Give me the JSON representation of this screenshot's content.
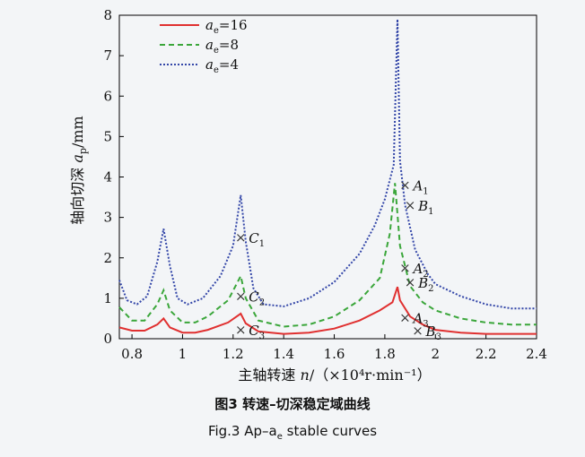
{
  "chart_data": {
    "type": "line",
    "xlabel_main": "主轴转速 ",
    "xlabel_var": "n",
    "xlabel_unit": "/（×10⁴r·min⁻¹）",
    "ylabel_main": "轴向切深 ",
    "ylabel_var": "a",
    "ylabel_sub": "p",
    "ylabel_unit": "/mm",
    "xlim": [
      0.75,
      2.4
    ],
    "ylim": [
      0,
      8
    ],
    "xticks": [
      0.8,
      1.0,
      1.2,
      1.4,
      1.6,
      1.8,
      2.0,
      2.2,
      2.4
    ],
    "xtick_labels": [
      "0.8",
      "1",
      "1.2",
      "1.4",
      "1.6",
      "1.8",
      "2",
      "2.2",
      "2.4"
    ],
    "yticks": [
      0,
      1,
      2,
      3,
      4,
      5,
      6,
      7,
      8
    ],
    "ytick_labels": [
      "0",
      "1",
      "2",
      "3",
      "4",
      "5",
      "6",
      "7",
      "8"
    ],
    "legend_position": "top-left",
    "series": [
      {
        "name": "=16",
        "name_var": "a",
        "name_sub": "e",
        "color": "#e03030",
        "style": "solid",
        "points": [
          [
            0.75,
            0.28
          ],
          [
            0.8,
            0.2
          ],
          [
            0.85,
            0.2
          ],
          [
            0.9,
            0.35
          ],
          [
            0.925,
            0.5
          ],
          [
            0.95,
            0.28
          ],
          [
            1.0,
            0.15
          ],
          [
            1.05,
            0.15
          ],
          [
            1.1,
            0.22
          ],
          [
            1.18,
            0.4
          ],
          [
            1.23,
            0.62
          ],
          [
            1.25,
            0.38
          ],
          [
            1.3,
            0.18
          ],
          [
            1.4,
            0.12
          ],
          [
            1.5,
            0.15
          ],
          [
            1.6,
            0.25
          ],
          [
            1.7,
            0.45
          ],
          [
            1.78,
            0.7
          ],
          [
            1.83,
            0.9
          ],
          [
            1.85,
            1.28
          ],
          [
            1.86,
            0.95
          ],
          [
            1.9,
            0.55
          ],
          [
            1.95,
            0.35
          ],
          [
            2.0,
            0.22
          ],
          [
            2.1,
            0.15
          ],
          [
            2.2,
            0.12
          ],
          [
            2.3,
            0.12
          ],
          [
            2.4,
            0.12
          ]
        ]
      },
      {
        "name": "=8",
        "name_var": "a",
        "name_sub": "e",
        "color": "#3aa63a",
        "style": "dashed",
        "points": [
          [
            0.75,
            0.78
          ],
          [
            0.8,
            0.45
          ],
          [
            0.85,
            0.45
          ],
          [
            0.9,
            0.85
          ],
          [
            0.925,
            1.2
          ],
          [
            0.95,
            0.7
          ],
          [
            1.0,
            0.4
          ],
          [
            1.05,
            0.4
          ],
          [
            1.1,
            0.55
          ],
          [
            1.18,
            0.95
          ],
          [
            1.23,
            1.55
          ],
          [
            1.25,
            1.0
          ],
          [
            1.3,
            0.45
          ],
          [
            1.4,
            0.3
          ],
          [
            1.5,
            0.35
          ],
          [
            1.6,
            0.55
          ],
          [
            1.7,
            0.95
          ],
          [
            1.78,
            1.5
          ],
          [
            1.82,
            2.6
          ],
          [
            1.84,
            3.85
          ],
          [
            1.86,
            2.3
          ],
          [
            1.9,
            1.3
          ],
          [
            1.95,
            0.9
          ],
          [
            2.0,
            0.7
          ],
          [
            2.1,
            0.5
          ],
          [
            2.2,
            0.4
          ],
          [
            2.3,
            0.35
          ],
          [
            2.4,
            0.35
          ]
        ]
      },
      {
        "name": "=4",
        "name_var": "a",
        "name_sub": "e",
        "color": "#3346a8",
        "style": "dotted",
        "points": [
          [
            0.75,
            1.45
          ],
          [
            0.78,
            0.95
          ],
          [
            0.82,
            0.85
          ],
          [
            0.86,
            1.05
          ],
          [
            0.9,
            1.9
          ],
          [
            0.925,
            2.72
          ],
          [
            0.95,
            1.8
          ],
          [
            0.98,
            1.0
          ],
          [
            1.02,
            0.85
          ],
          [
            1.08,
            1.0
          ],
          [
            1.15,
            1.55
          ],
          [
            1.2,
            2.3
          ],
          [
            1.23,
            3.55
          ],
          [
            1.25,
            2.4
          ],
          [
            1.28,
            1.25
          ],
          [
            1.32,
            0.85
          ],
          [
            1.4,
            0.8
          ],
          [
            1.5,
            1.0
          ],
          [
            1.6,
            1.4
          ],
          [
            1.7,
            2.1
          ],
          [
            1.76,
            2.8
          ],
          [
            1.8,
            3.45
          ],
          [
            1.835,
            4.3
          ],
          [
            1.85,
            7.9
          ],
          [
            1.86,
            4.4
          ],
          [
            1.88,
            3.3
          ],
          [
            1.92,
            2.2
          ],
          [
            1.97,
            1.6
          ],
          [
            2.0,
            1.35
          ],
          [
            2.1,
            1.05
          ],
          [
            2.2,
            0.85
          ],
          [
            2.3,
            0.75
          ],
          [
            2.4,
            0.75
          ]
        ]
      }
    ],
    "markers": [
      {
        "label": "A",
        "sub": "1",
        "x": 1.88,
        "y": 3.8
      },
      {
        "label": "B",
        "sub": "1",
        "x": 1.9,
        "y": 3.3
      },
      {
        "label": "A",
        "sub": "2",
        "x": 1.88,
        "y": 1.75
      },
      {
        "label": "B",
        "sub": "2",
        "x": 1.9,
        "y": 1.4
      },
      {
        "label": "A",
        "sub": "3",
        "x": 1.88,
        "y": 0.52
      },
      {
        "label": "B",
        "sub": "3",
        "x": 1.93,
        "y": 0.2
      },
      {
        "label": "C",
        "sub": "1",
        "x": 1.23,
        "y": 2.5
      },
      {
        "label": "C",
        "sub": "2",
        "x": 1.23,
        "y": 1.05
      },
      {
        "label": "C",
        "sub": "3",
        "x": 1.23,
        "y": 0.22
      }
    ]
  },
  "caption": {
    "cn": "图3  转速–切深稳定域曲线",
    "en_prefix": "Fig.3     Ap–a",
    "en_sub": "e",
    "en_suffix": " stable curves"
  }
}
